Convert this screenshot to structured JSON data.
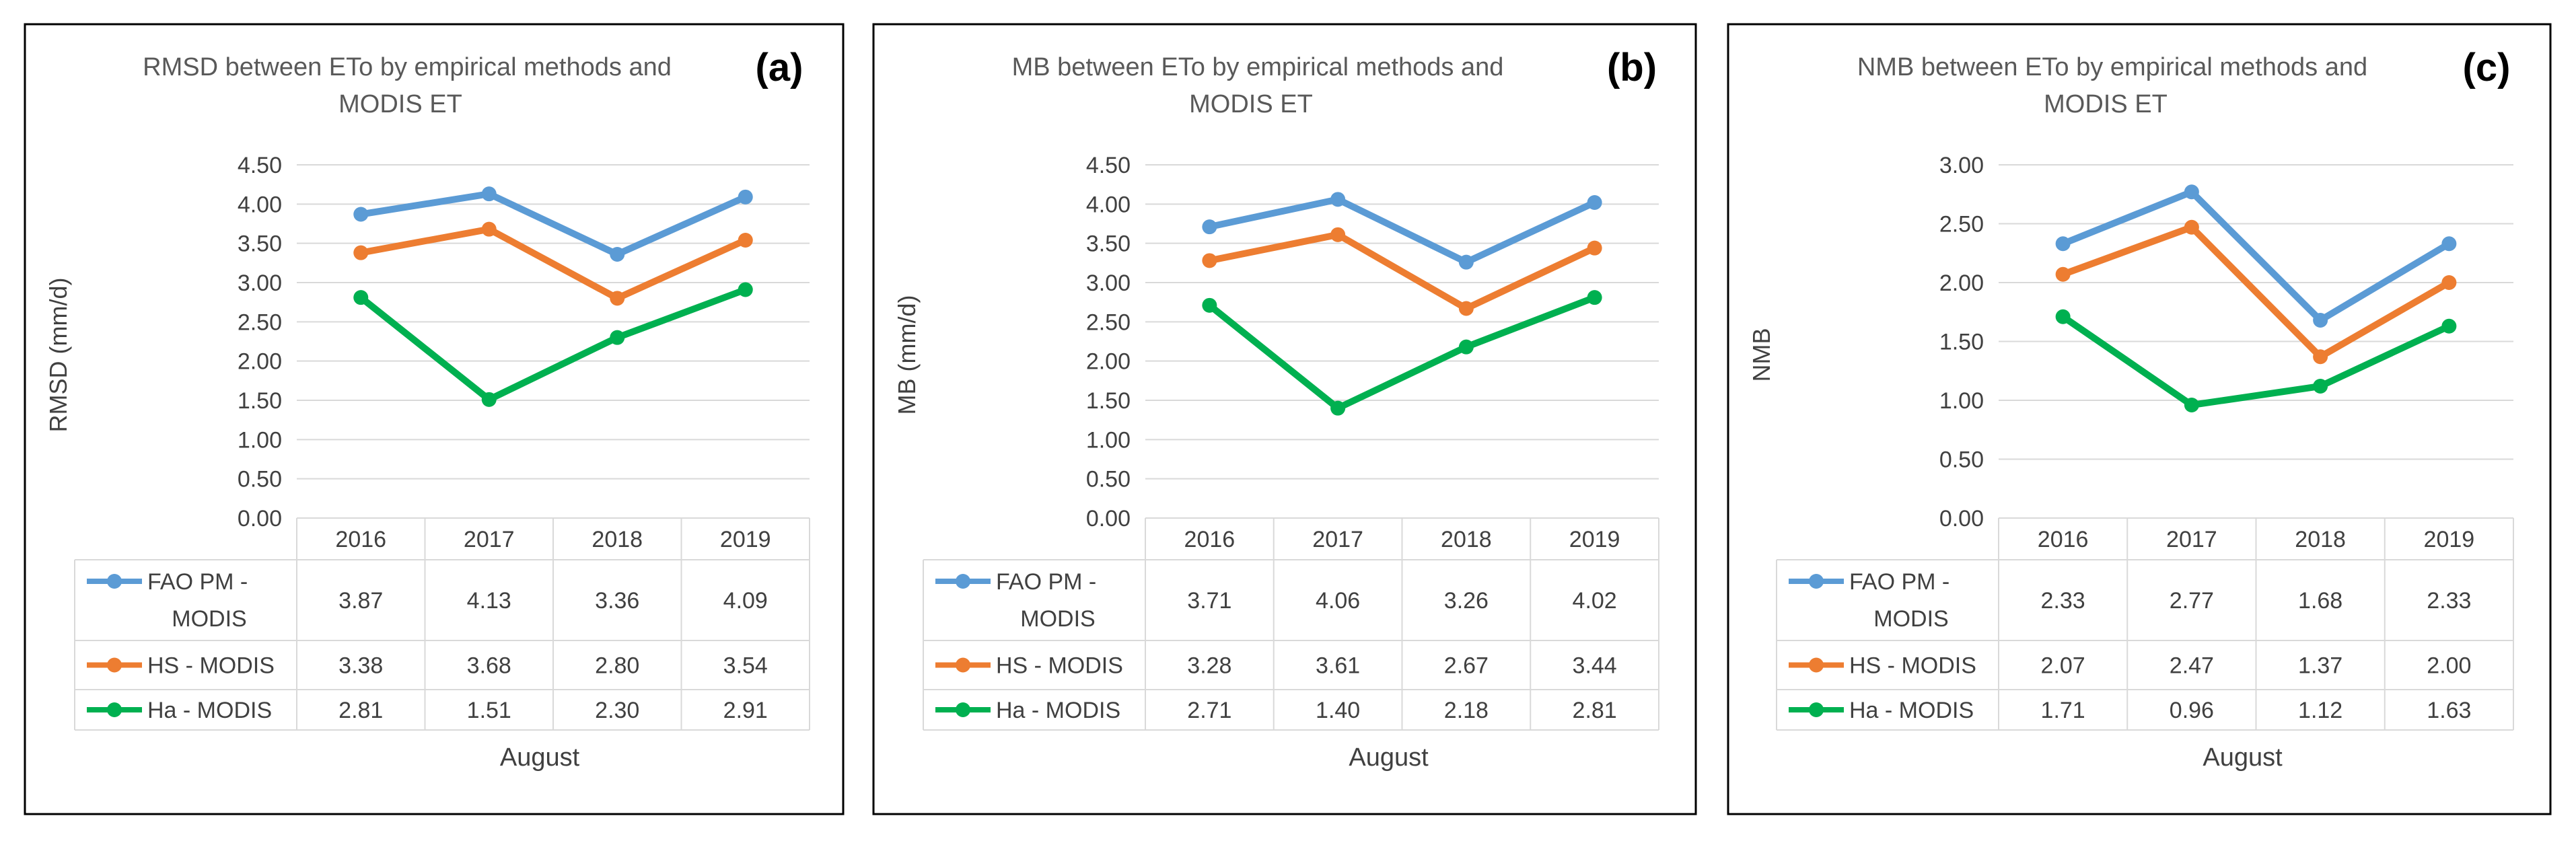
{
  "colors": {
    "series": [
      "#5b9bd5",
      "#ed7d31",
      "#00b050"
    ],
    "grid": "#d9d9d9",
    "border": "#000000",
    "text": "#404040",
    "title_text": "#595959",
    "panel_label": "#000000"
  },
  "chart_data": [
    {
      "type": "line",
      "panel_label": "(a)",
      "title_lines": [
        "RMSD between ETo by empirical methods and",
        "MODIS ET"
      ],
      "ylabel": "RMSD (mm/d)",
      "xlabel": "August",
      "ylim": [
        0,
        4.5
      ],
      "ytick_step": 0.5,
      "yticks": [
        "0.00",
        "0.50",
        "1.00",
        "1.50",
        "2.00",
        "2.50",
        "3.00",
        "3.50",
        "4.00",
        "4.50"
      ],
      "categories": [
        "2016",
        "2017",
        "2018",
        "2019"
      ],
      "series": [
        {
          "name_lines": [
            "FAO PM -",
            "MODIS"
          ],
          "values": [
            3.87,
            4.13,
            3.36,
            4.09
          ],
          "labels": [
            "3.87",
            "4.13",
            "3.36",
            "4.09"
          ]
        },
        {
          "name_lines": [
            "HS - MODIS"
          ],
          "values": [
            3.38,
            3.68,
            2.8,
            3.54
          ],
          "labels": [
            "3.38",
            "3.68",
            "2.80",
            "3.54"
          ]
        },
        {
          "name_lines": [
            "Ha - MODIS"
          ],
          "values": [
            2.81,
            1.51,
            2.3,
            2.91
          ],
          "labels": [
            "2.81",
            "1.51",
            "2.30",
            "2.91"
          ]
        }
      ]
    },
    {
      "type": "line",
      "panel_label": "(b)",
      "title_lines": [
        "MB between ETo by empirical methods and",
        "MODIS ET"
      ],
      "ylabel": "MB (mm/d)",
      "xlabel": "August",
      "ylim": [
        0,
        4.5
      ],
      "ytick_step": 0.5,
      "yticks": [
        "0.00",
        "0.50",
        "1.00",
        "1.50",
        "2.00",
        "2.50",
        "3.00",
        "3.50",
        "4.00",
        "4.50"
      ],
      "categories": [
        "2016",
        "2017",
        "2018",
        "2019"
      ],
      "series": [
        {
          "name_lines": [
            "FAO PM -",
            "MODIS"
          ],
          "values": [
            3.71,
            4.06,
            3.26,
            4.02
          ],
          "labels": [
            "3.71",
            "4.06",
            "3.26",
            "4.02"
          ]
        },
        {
          "name_lines": [
            "HS - MODIS"
          ],
          "values": [
            3.28,
            3.61,
            2.67,
            3.44
          ],
          "labels": [
            "3.28",
            "3.61",
            "2.67",
            "3.44"
          ]
        },
        {
          "name_lines": [
            "Ha - MODIS"
          ],
          "values": [
            2.71,
            1.4,
            2.18,
            2.81
          ],
          "labels": [
            "2.71",
            "1.40",
            "2.18",
            "2.81"
          ]
        }
      ]
    },
    {
      "type": "line",
      "panel_label": "(c)",
      "title_lines": [
        "NMB between ETo by empirical methods and",
        "MODIS ET"
      ],
      "ylabel": "NMB",
      "xlabel": "August",
      "ylim": [
        0,
        3.0
      ],
      "ytick_step": 0.5,
      "yticks": [
        "0.00",
        "0.50",
        "1.00",
        "1.50",
        "2.00",
        "2.50",
        "3.00"
      ],
      "categories": [
        "2016",
        "2017",
        "2018",
        "2019"
      ],
      "series": [
        {
          "name_lines": [
            "FAO PM -",
            "MODIS"
          ],
          "values": [
            2.33,
            2.77,
            1.68,
            2.33
          ],
          "labels": [
            "2.33",
            "2.77",
            "1.68",
            "2.33"
          ]
        },
        {
          "name_lines": [
            "HS - MODIS"
          ],
          "values": [
            2.07,
            2.47,
            1.37,
            2.0
          ],
          "labels": [
            "2.07",
            "2.47",
            "1.37",
            "2.00"
          ]
        },
        {
          "name_lines": [
            "Ha - MODIS"
          ],
          "values": [
            1.71,
            0.96,
            1.12,
            1.63
          ],
          "labels": [
            "1.71",
            "0.96",
            "1.12",
            "1.63"
          ]
        }
      ]
    }
  ]
}
